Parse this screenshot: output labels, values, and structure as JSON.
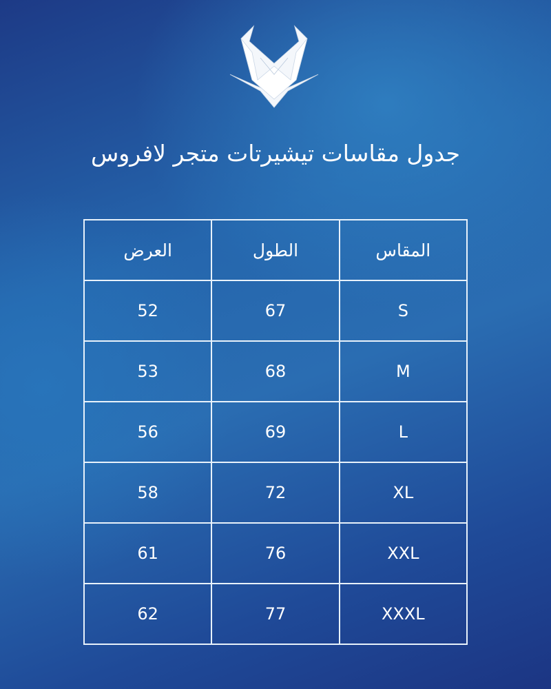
{
  "logo": {
    "name": "lafros-logo",
    "color": "#ffffff"
  },
  "title": "جدول مقاسات تيشيرتات متجر لافروس",
  "table": {
    "headers": [
      "المقاس",
      "الطول",
      "العرض"
    ],
    "rows": [
      [
        "S",
        "67",
        "52"
      ],
      [
        "M",
        "68",
        "53"
      ],
      [
        "L",
        "69",
        "56"
      ],
      [
        "XL",
        "72",
        "58"
      ],
      [
        "XXL",
        "76",
        "61"
      ],
      [
        "XXXL",
        "77",
        "62"
      ]
    ]
  },
  "colors": {
    "background_dark": "#1d3a86",
    "background_light": "#2a78b8",
    "line": "#e8f2fb"
  }
}
